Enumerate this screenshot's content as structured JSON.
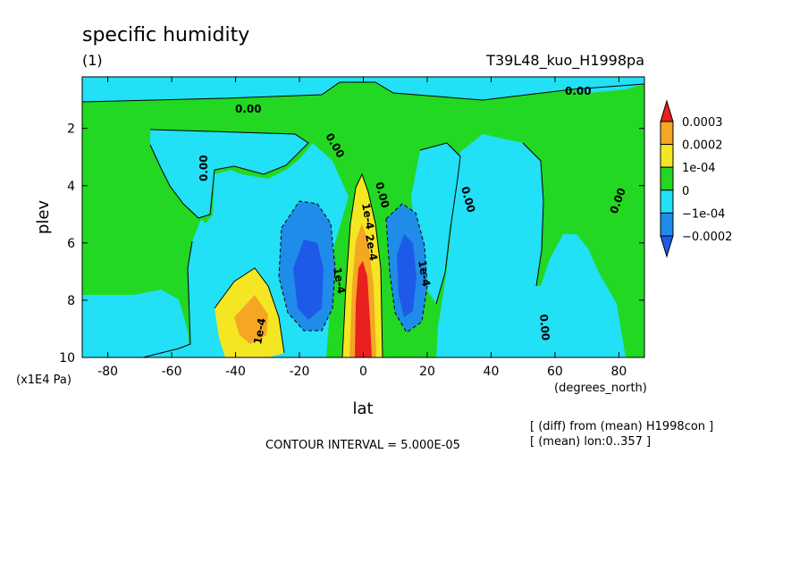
{
  "chart_data": {
    "type": "contour",
    "title": "specific humidity",
    "subtitle": "(1)",
    "run_label": "T39L48_kuo_H1998pa",
    "xlabel": "lat",
    "x_unit": "(degrees_north)",
    "ylabel": "plev",
    "y_unit": "(x1E4 Pa)",
    "xlim": [
      -88,
      88
    ],
    "ylim": [
      0.2,
      10
    ],
    "y_inverted": true,
    "xticks": [
      -80,
      -60,
      -40,
      -20,
      0,
      20,
      40,
      60,
      80
    ],
    "xtick_labels": [
      "-80",
      "-60",
      "-40",
      "-20",
      "0",
      "20",
      "40",
      "60",
      "80"
    ],
    "yticks": [
      2,
      4,
      6,
      8,
      10
    ],
    "ytick_labels": [
      "2",
      "4",
      "6",
      "8",
      "10"
    ],
    "colorbar": {
      "labels": [
        "0.0003",
        "0.0002",
        "1e-04",
        "0",
        "−1e-04",
        "−0.0002"
      ],
      "levels": [
        0.0003,
        0.0002,
        0.0001,
        0,
        -0.0001,
        -0.0002
      ],
      "colors": [
        "#e8201e",
        "#f5a623",
        "#f5e623",
        "#22d822",
        "#22e0f5",
        "#1e8ce8",
        "#1e5ae8"
      ]
    },
    "contour_labels": [
      {
        "text": "0.00"
      },
      {
        "text": "0.00"
      },
      {
        "text": "0.00"
      },
      {
        "text": "0.00"
      },
      {
        "text": "0.00"
      },
      {
        "text": "0.00"
      },
      {
        "text": "0.00"
      },
      {
        "text": "0.00"
      },
      {
        "text": "1e-4"
      },
      {
        "text": "1e-4"
      },
      {
        "text": "1e-4"
      },
      {
        "text": "2e-4"
      },
      {
        "text": "1e-4"
      }
    ],
    "contour_interval": "CONTOUR INTERVAL = 5.000E-05",
    "annotations": [
      "[ (diff) from (mean) H1998con ]",
      "[ (mean) lon:0..357 ]"
    ]
  }
}
